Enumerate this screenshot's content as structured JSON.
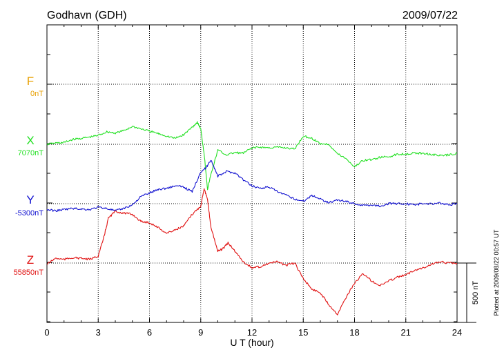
{
  "chart_data": {
    "type": "line",
    "title_left": "Godhavn (GDH)",
    "title_right": "2009/07/22",
    "xlabel": "U T (hour)",
    "xlim": [
      0,
      24
    ],
    "xticks": [
      0,
      3,
      6,
      9,
      12,
      15,
      18,
      21,
      24
    ],
    "grid": true,
    "scale_bar_label": "500 nT",
    "scale_bar_value_nT": 500,
    "plotted_note": "Plotted at 2009/08/22 00:57 UT",
    "colors": {
      "F": "#e8a000",
      "X": "#22e022",
      "Y": "#1010d0",
      "Z": "#e01010"
    },
    "series": [
      {
        "name": "F",
        "baseline_label": "0nT",
        "baseline_nT": 0,
        "x": [],
        "values": []
      },
      {
        "name": "X",
        "baseline_label": "7070nT",
        "baseline_nT": 7070,
        "x": [
          0,
          0.5,
          1,
          1.5,
          2,
          2.5,
          3,
          3.5,
          4,
          4.5,
          5,
          5.5,
          6,
          6.5,
          7,
          7.5,
          8,
          8.5,
          8.8,
          9,
          9.2,
          9.4,
          9.6,
          10,
          10.5,
          11,
          11.5,
          12,
          12.5,
          13,
          13.5,
          14,
          14.5,
          15,
          15.5,
          16,
          16.5,
          17,
          17.5,
          18,
          18.5,
          19,
          19.5,
          20,
          20.5,
          21,
          21.5,
          22,
          22.5,
          23,
          23.5,
          24
        ],
        "values": [
          7070,
          7080,
          7085,
          7110,
          7120,
          7130,
          7145,
          7175,
          7165,
          7185,
          7220,
          7200,
          7180,
          7160,
          7140,
          7120,
          7150,
          7215,
          7255,
          7200,
          6990,
          6690,
          6820,
          7020,
          6980,
          7000,
          6995,
          7040,
          7045,
          7040,
          7045,
          7040,
          7030,
          7140,
          7120,
          7075,
          7070,
          6990,
          6950,
          6880,
          6935,
          6940,
          6960,
          6965,
          6985,
          6990,
          6995,
          6995,
          6985,
          6975,
          6980,
          6995
        ]
      },
      {
        "name": "Y",
        "baseline_label": "-5300nT",
        "baseline_nT": -5300,
        "x": [
          0,
          0.5,
          1,
          1.5,
          2,
          2.5,
          3,
          3.5,
          4,
          4.5,
          5,
          5.5,
          6,
          6.5,
          7,
          7.5,
          8,
          8.5,
          9,
          9.3,
          9.6,
          10,
          10.5,
          11,
          11.5,
          12,
          12.5,
          13,
          13.5,
          14,
          14.5,
          15,
          15.5,
          16,
          16.5,
          17,
          17.5,
          18,
          18.5,
          19,
          19.5,
          20,
          20.5,
          21,
          21.5,
          22,
          22.5,
          23,
          23.5,
          24
        ],
        "values": [
          -5350,
          -5360,
          -5350,
          -5340,
          -5345,
          -5350,
          -5330,
          -5340,
          -5360,
          -5340,
          -5310,
          -5240,
          -5210,
          -5180,
          -5170,
          -5150,
          -5160,
          -5200,
          -5030,
          -5000,
          -4930,
          -5070,
          -5030,
          -5040,
          -5100,
          -5150,
          -5170,
          -5160,
          -5200,
          -5230,
          -5260,
          -5280,
          -5230,
          -5260,
          -5290,
          -5270,
          -5280,
          -5300,
          -5315,
          -5310,
          -5320,
          -5300,
          -5300,
          -5300,
          -5310,
          -5300,
          -5300,
          -5295,
          -5310,
          -5300
        ]
      },
      {
        "name": "Z",
        "baseline_label": "55850nT",
        "baseline_nT": 55850,
        "x": [
          0,
          0.5,
          1,
          1.5,
          2,
          2.5,
          3,
          3.3,
          3.6,
          4,
          4.5,
          5,
          5.5,
          6,
          6.5,
          7,
          7.5,
          8,
          8.5,
          9,
          9.2,
          9.4,
          9.6,
          10,
          10.3,
          10.6,
          11,
          11.5,
          12,
          12.5,
          13,
          13.5,
          14,
          14.5,
          15,
          15.5,
          16,
          16.5,
          17,
          17.5,
          18,
          18.5,
          19,
          19.5,
          20,
          20.5,
          21,
          21.5,
          22,
          22.5,
          23,
          23.5,
          24
        ],
        "values": [
          55840,
          55890,
          55880,
          55895,
          55890,
          55880,
          55910,
          56050,
          56230,
          56285,
          56270,
          56260,
          56200,
          56190,
          56150,
          56100,
          56130,
          56160,
          56260,
          56330,
          56480,
          56380,
          56150,
          55950,
          55970,
          56020,
          55950,
          55860,
          55810,
          55820,
          55850,
          55860,
          55830,
          55850,
          55720,
          55630,
          55600,
          55500,
          55420,
          55560,
          55680,
          55760,
          55700,
          55660,
          55700,
          55730,
          55750,
          55790,
          55810,
          55840,
          55860,
          55850,
          55850
        ]
      }
    ]
  }
}
